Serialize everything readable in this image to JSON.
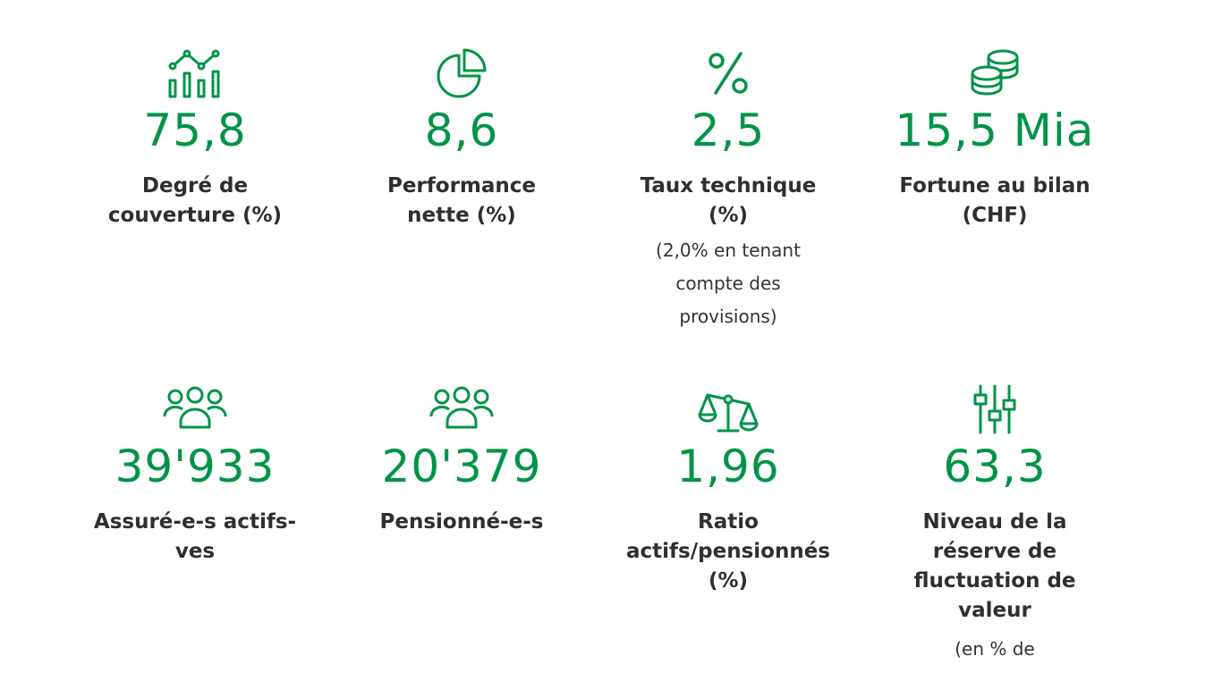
{
  "theme": {
    "accent": "#009447",
    "text": "#2f2f2f"
  },
  "stats": [
    {
      "icon": "chart-bars-line-icon",
      "value": "75,8",
      "label": "Degré de couverture (%)",
      "note": ""
    },
    {
      "icon": "pie-chart-icon",
      "value": "8,6",
      "label": "Performance nette (%)",
      "note": ""
    },
    {
      "icon": "percent-icon",
      "value": "2,5",
      "label": "Taux technique (%)",
      "note": "(2,0% en tenant compte des provisions)"
    },
    {
      "icon": "coin-stack-icon",
      "value": "15,5 Mia",
      "label": "Fortune au bilan (CHF)",
      "note": ""
    },
    {
      "icon": "group-people-icon",
      "value": "39'933",
      "label": "Assuré-e-s actifs-ves",
      "note": ""
    },
    {
      "icon": "group-people-icon",
      "value": "20'379",
      "label": "Pensionné-e-s",
      "note": ""
    },
    {
      "icon": "balance-scale-icon",
      "value": "1,96",
      "label": "Ratio actifs/pensionnés (%)",
      "note": ""
    },
    {
      "icon": "sliders-icon",
      "value": "63,3",
      "label": "Niveau de la réserve de fluctuation de valeur",
      "note": "(en % de"
    }
  ]
}
